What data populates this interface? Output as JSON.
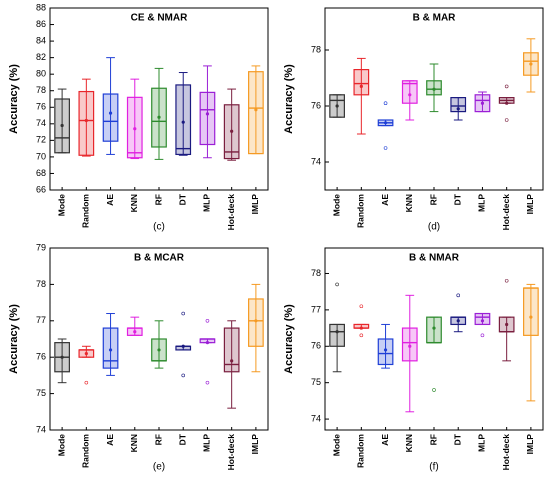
{
  "chart_data": [
    {
      "type": "box",
      "title": "CE & NMAR",
      "panel_label": "(c)",
      "y_label": "Accuracy (%)",
      "categories": [
        "Mode",
        "Random",
        "AE",
        "KNN",
        "RF",
        "DT",
        "MLP",
        "Hot-deck",
        "IMLP"
      ],
      "colors": [
        "#333333",
        "#e8262b",
        "#1f3fd6",
        "#e020e0",
        "#2e8b2e",
        "#1a1a80",
        "#9b1fd6",
        "#7a1f3f",
        "#f59a23"
      ],
      "ylim": [
        66,
        88
      ],
      "yticks": [
        66,
        68,
        70,
        72,
        74,
        76,
        78,
        80,
        82,
        84,
        86,
        88
      ],
      "boxes": [
        {
          "min": 70.5,
          "q1": 70.5,
          "median": 72.3,
          "q3": 77.0,
          "max": 78.2,
          "mean": 73.8,
          "outliers": []
        },
        {
          "min": 70.1,
          "q1": 70.2,
          "median": 74.4,
          "q3": 77.9,
          "max": 79.4,
          "mean": 74.4,
          "outliers": []
        },
        {
          "min": 70.3,
          "q1": 71.9,
          "median": 74.3,
          "q3": 77.6,
          "max": 82.0,
          "mean": 75.3,
          "outliers": []
        },
        {
          "min": 69.8,
          "q1": 69.9,
          "median": 70.5,
          "q3": 77.2,
          "max": 79.4,
          "mean": 73.4,
          "outliers": []
        },
        {
          "min": 69.7,
          "q1": 71.2,
          "median": 74.3,
          "q3": 78.3,
          "max": 80.7,
          "mean": 74.8,
          "outliers": []
        },
        {
          "min": 70.2,
          "q1": 70.3,
          "median": 71.0,
          "q3": 78.7,
          "max": 80.2,
          "mean": 74.2,
          "outliers": []
        },
        {
          "min": 69.9,
          "q1": 71.5,
          "median": 75.7,
          "q3": 77.8,
          "max": 81.0,
          "mean": 75.2,
          "outliers": []
        },
        {
          "min": 69.6,
          "q1": 69.8,
          "median": 70.6,
          "q3": 76.3,
          "max": 78.2,
          "mean": 73.1,
          "outliers": []
        },
        {
          "min": 70.4,
          "q1": 70.4,
          "median": 75.9,
          "q3": 80.3,
          "max": 81.0,
          "mean": 75.7,
          "outliers": []
        }
      ]
    },
    {
      "type": "box",
      "title": "B & MAR",
      "panel_label": "(d)",
      "y_label": "Accuracy (%)",
      "categories": [
        "Mode",
        "Random",
        "AE",
        "KNN",
        "RF",
        "DT",
        "MLP",
        "Hot-deck",
        "IMLP"
      ],
      "colors": [
        "#333333",
        "#e8262b",
        "#1f3fd6",
        "#e020e0",
        "#2e8b2e",
        "#1a1a80",
        "#9b1fd6",
        "#7a1f3f",
        "#f59a23"
      ],
      "ylim": [
        73,
        79.5
      ],
      "yticks": [
        74,
        76,
        78
      ],
      "boxes": [
        {
          "min": 75.6,
          "q1": 75.6,
          "median": 76.2,
          "q3": 76.4,
          "max": 76.4,
          "mean": 76.0,
          "outliers": []
        },
        {
          "min": 75.0,
          "q1": 76.4,
          "median": 76.8,
          "q3": 77.3,
          "max": 77.7,
          "mean": 76.7,
          "outliers": []
        },
        {
          "min": 75.3,
          "q1": 75.3,
          "median": 75.4,
          "q3": 75.5,
          "max": 75.5,
          "mean": 75.4,
          "outliers": [
            76.1,
            74.5
          ]
        },
        {
          "min": 75.5,
          "q1": 76.1,
          "median": 76.8,
          "q3": 76.9,
          "max": 76.9,
          "mean": 76.4,
          "outliers": []
        },
        {
          "min": 75.8,
          "q1": 76.4,
          "median": 76.6,
          "q3": 76.9,
          "max": 77.5,
          "mean": 76.6,
          "outliers": []
        },
        {
          "min": 75.5,
          "q1": 75.8,
          "median": 76.0,
          "q3": 76.3,
          "max": 76.3,
          "mean": 75.9,
          "outliers": []
        },
        {
          "min": 75.8,
          "q1": 75.8,
          "median": 76.2,
          "q3": 76.4,
          "max": 76.5,
          "mean": 76.1,
          "outliers": []
        },
        {
          "min": 76.1,
          "q1": 76.1,
          "median": 76.2,
          "q3": 76.3,
          "max": 76.3,
          "mean": 76.1,
          "outliers": [
            75.5,
            76.7
          ]
        },
        {
          "min": 76.5,
          "q1": 77.1,
          "median": 77.6,
          "q3": 77.9,
          "max": 78.4,
          "mean": 77.5,
          "outliers": []
        }
      ]
    },
    {
      "type": "box",
      "title": "B & MCAR",
      "panel_label": "(e)",
      "y_label": "Accuracy (%)",
      "categories": [
        "Mode",
        "Random",
        "AE",
        "KNN",
        "RF",
        "DT",
        "MLP",
        "Hot-deck",
        "IMLP"
      ],
      "colors": [
        "#333333",
        "#e8262b",
        "#1f3fd6",
        "#e020e0",
        "#2e8b2e",
        "#1a1a80",
        "#9b1fd6",
        "#7a1f3f",
        "#f59a23"
      ],
      "ylim": [
        74,
        79
      ],
      "yticks": [
        74,
        75,
        76,
        77,
        78,
        79
      ],
      "boxes": [
        {
          "min": 75.3,
          "q1": 75.6,
          "median": 76.0,
          "q3": 76.4,
          "max": 76.5,
          "mean": 76.0,
          "outliers": []
        },
        {
          "min": 76.0,
          "q1": 76.0,
          "median": 76.2,
          "q3": 76.2,
          "max": 76.3,
          "mean": 76.1,
          "outliers": [
            75.3
          ]
        },
        {
          "min": 75.5,
          "q1": 75.7,
          "median": 75.9,
          "q3": 76.8,
          "max": 77.2,
          "mean": 76.2,
          "outliers": []
        },
        {
          "min": 76.6,
          "q1": 76.6,
          "median": 76.8,
          "q3": 76.8,
          "max": 77.1,
          "mean": 76.7,
          "outliers": []
        },
        {
          "min": 75.7,
          "q1": 75.9,
          "median": 75.9,
          "q3": 76.5,
          "max": 77.0,
          "mean": 76.2,
          "outliers": []
        },
        {
          "min": 76.2,
          "q1": 76.2,
          "median": 76.3,
          "q3": 76.3,
          "max": 76.3,
          "mean": 76.3,
          "outliers": [
            77.2,
            75.5
          ]
        },
        {
          "min": 76.4,
          "q1": 76.4,
          "median": 76.5,
          "q3": 76.5,
          "max": 76.5,
          "mean": 76.4,
          "outliers": [
            75.3,
            77.0
          ]
        },
        {
          "min": 74.6,
          "q1": 75.6,
          "median": 75.8,
          "q3": 76.8,
          "max": 77.0,
          "mean": 75.9,
          "outliers": []
        },
        {
          "min": 75.6,
          "q1": 76.3,
          "median": 77.0,
          "q3": 77.6,
          "max": 78.0,
          "mean": 77.0,
          "outliers": []
        }
      ]
    },
    {
      "type": "box",
      "title": "B & NMAR",
      "panel_label": "(f)",
      "y_label": "Accuracy (%)",
      "categories": [
        "Mode",
        "Random",
        "AE",
        "KNN",
        "RF",
        "DT",
        "MLP",
        "Hot-deck",
        "IMLP"
      ],
      "colors": [
        "#333333",
        "#e8262b",
        "#1f3fd6",
        "#e020e0",
        "#2e8b2e",
        "#1a1a80",
        "#9b1fd6",
        "#7a1f3f",
        "#f59a23"
      ],
      "ylim": [
        73.7,
        78.7
      ],
      "yticks": [
        74,
        75,
        76,
        77,
        78
      ],
      "boxes": [
        {
          "min": 75.3,
          "q1": 76.0,
          "median": 76.4,
          "q3": 76.6,
          "max": 76.6,
          "mean": 76.4,
          "outliers": [
            77.7
          ]
        },
        {
          "min": 76.5,
          "q1": 76.5,
          "median": 76.5,
          "q3": 76.6,
          "max": 76.6,
          "mean": 76.5,
          "outliers": [
            77.1,
            76.3
          ]
        },
        {
          "min": 75.4,
          "q1": 75.5,
          "median": 75.8,
          "q3": 76.2,
          "max": 76.6,
          "mean": 75.9,
          "outliers": []
        },
        {
          "min": 74.2,
          "q1": 75.6,
          "median": 76.1,
          "q3": 76.5,
          "max": 77.4,
          "mean": 76.0,
          "outliers": []
        },
        {
          "min": 76.1,
          "q1": 76.1,
          "median": 76.1,
          "q3": 76.8,
          "max": 76.8,
          "mean": 76.5,
          "outliers": [
            74.8
          ]
        },
        {
          "min": 76.4,
          "q1": 76.6,
          "median": 76.8,
          "q3": 76.8,
          "max": 76.8,
          "mean": 76.7,
          "outliers": [
            77.4
          ]
        },
        {
          "min": 76.6,
          "q1": 76.6,
          "median": 76.8,
          "q3": 76.9,
          "max": 76.9,
          "mean": 76.7,
          "outliers": [
            76.3
          ]
        },
        {
          "min": 75.6,
          "q1": 76.4,
          "median": 76.4,
          "q3": 76.8,
          "max": 76.8,
          "mean": 76.6,
          "outliers": [
            77.8
          ]
        },
        {
          "min": 74.5,
          "q1": 76.3,
          "median": 77.6,
          "q3": 77.6,
          "max": 77.7,
          "mean": 76.8,
          "outliers": []
        }
      ]
    }
  ]
}
